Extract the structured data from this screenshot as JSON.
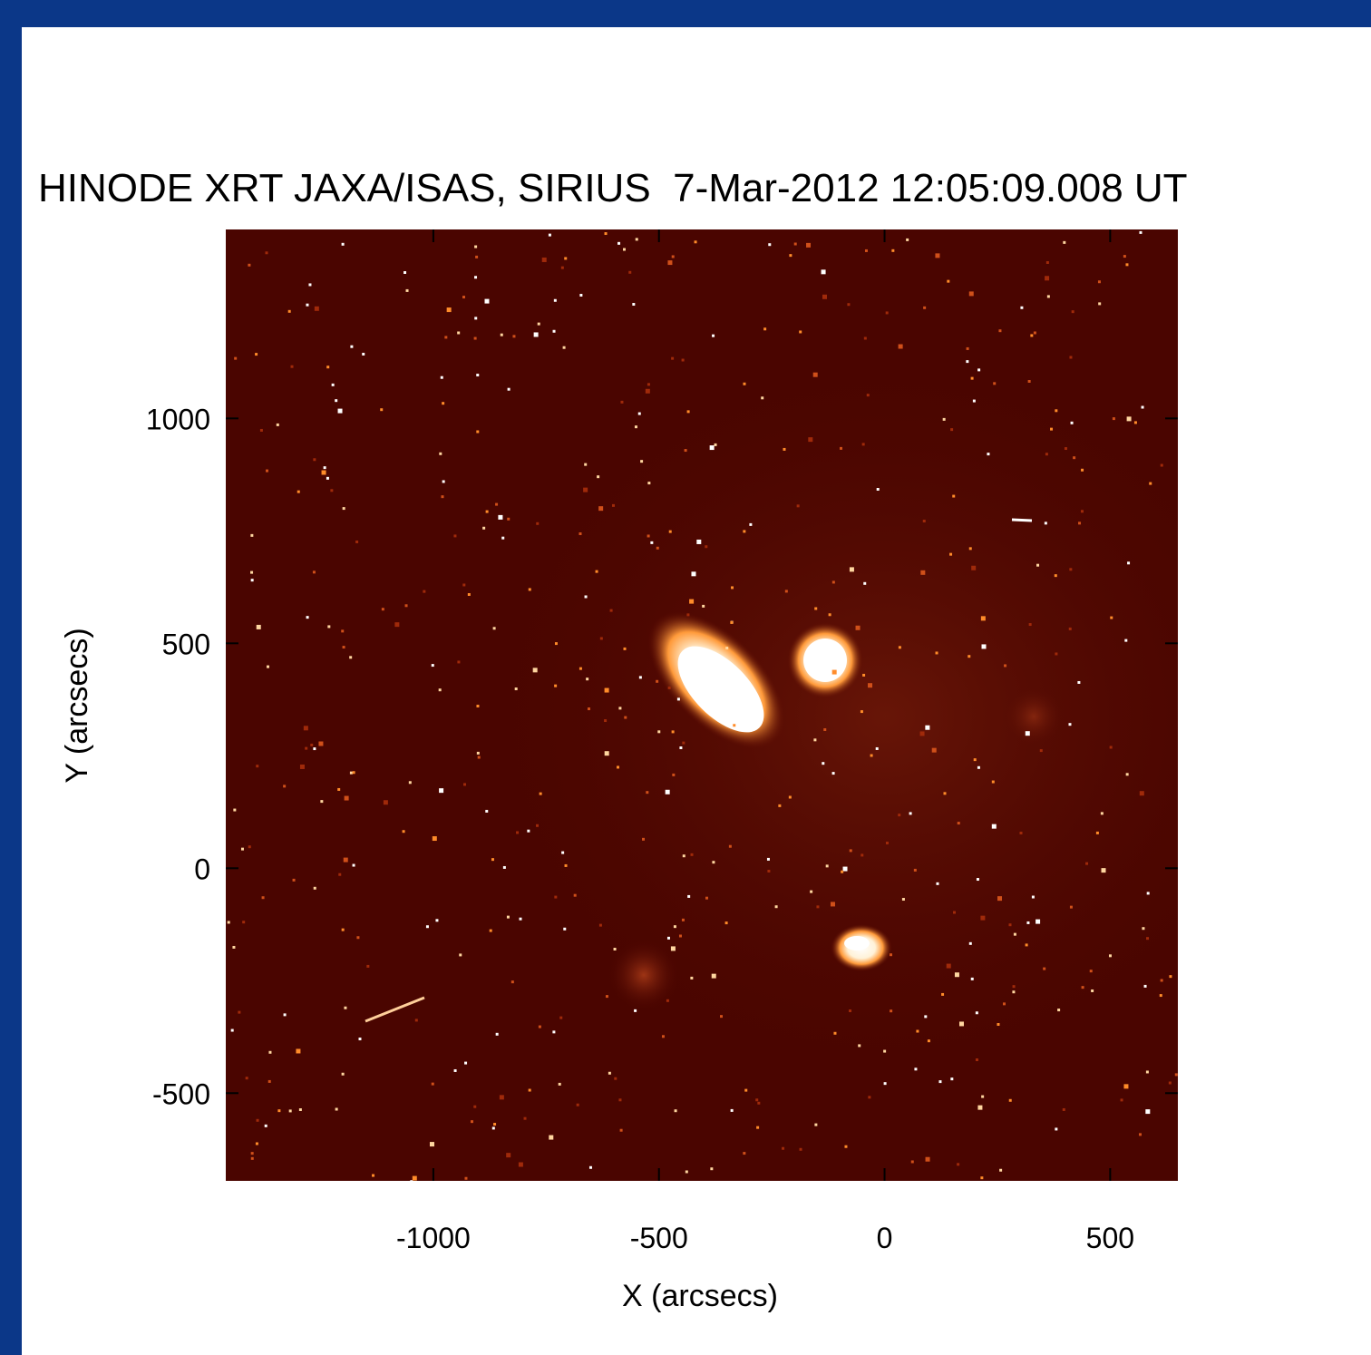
{
  "chart_data": {
    "type": "image",
    "title": "HINODE XRT JAXA/ISAS, SIRIUS  7-Mar-2012 12:05:09.008 UT",
    "x_label": "X (arcsecs)",
    "y_label": "Y (arcsecs)",
    "xlim": [
      -1460,
      650
    ],
    "ylim": [
      -695,
      1420
    ],
    "xticks": [
      -1000,
      -500,
      0,
      500
    ],
    "yticks": [
      -500,
      0,
      500,
      1000
    ]
  }
}
